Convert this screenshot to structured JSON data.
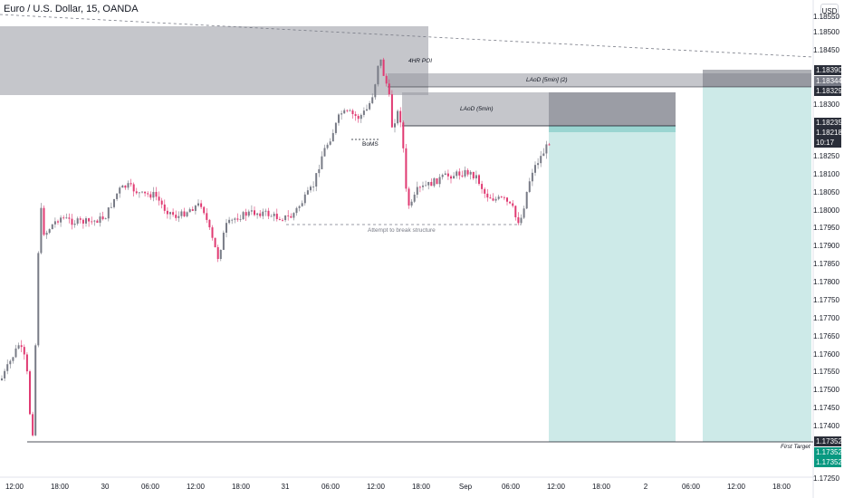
{
  "symbol": {
    "title": "Euro / U.S. Dollar, 15, OANDA"
  },
  "currency": "USD",
  "price_axis": {
    "ticks": [
      "1.18550",
      "1.18500",
      "1.18450",
      "1.18400",
      "1.18300",
      "1.18250",
      "1.18100",
      "1.18050",
      "1.18000",
      "1.17950",
      "1.17900",
      "1.17850",
      "1.17800",
      "1.17750",
      "1.17700",
      "1.17650",
      "1.17600",
      "1.17550",
      "1.17500",
      "1.17450",
      "1.17400",
      "1.17250"
    ],
    "badges": {
      "zone_top": "1.18390",
      "zone_mid": "1.18344",
      "zone_low": "1.18329",
      "ltf_top": "1.18235",
      "last_price": "1.18218",
      "countdown": "10:17",
      "stop": "1.17352",
      "target_a": "1.17352",
      "target_b": "1.17352"
    }
  },
  "time_axis": [
    "12:00",
    "18:00",
    "30",
    "06:00",
    "12:00",
    "18:00",
    "31",
    "06:00",
    "12:00",
    "18:00",
    "Sep",
    "06:00",
    "12:00",
    "18:00",
    "2",
    "06:00",
    "12:00",
    "18:00"
  ],
  "annotations": {
    "poi_4hr": "4HR POI",
    "laod_5min_2": "LAoD [5min] (2)",
    "laod_5min": "LAoD (5min)",
    "boms": "BoMS",
    "attempt": "Attempt to break structure",
    "first_target": "First Target"
  },
  "colors": {
    "bull": "#787b86",
    "bear": "#e03a72",
    "zone": "#9598a1",
    "target_fill": "#b2dfdb",
    "teal": "#089981"
  }
}
